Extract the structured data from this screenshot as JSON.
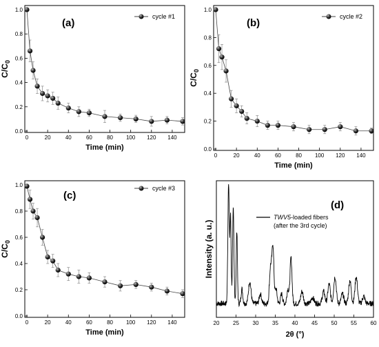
{
  "chart_data": [
    {
      "type": "scatter",
      "panel_label": "(a)",
      "xlabel": "Time (min)",
      "ylabel_main": "C/C",
      "ylabel_sub": "0",
      "xlim": [
        0,
        150
      ],
      "ylim": [
        0,
        1.0
      ],
      "xticks": [
        0,
        20,
        40,
        60,
        80,
        100,
        120,
        140
      ],
      "yticks": [
        0.0,
        0.2,
        0.4,
        0.6,
        0.8,
        1.0
      ],
      "series": [
        {
          "name": "cycle #1",
          "x": [
            0,
            3,
            6,
            10,
            15,
            20,
            25,
            30,
            40,
            50,
            60,
            75,
            90,
            105,
            120,
            135,
            150
          ],
          "y": [
            1.0,
            0.66,
            0.5,
            0.37,
            0.31,
            0.29,
            0.27,
            0.23,
            0.19,
            0.16,
            0.15,
            0.12,
            0.11,
            0.1,
            0.08,
            0.09,
            0.08
          ],
          "err": [
            0,
            0.09,
            0.07,
            0.06,
            0.06,
            0.05,
            0.05,
            0.05,
            0.04,
            0.04,
            0.03,
            0.05,
            0.03,
            0.03,
            0.04,
            0.03,
            0.03
          ]
        }
      ]
    },
    {
      "type": "scatter",
      "panel_label": "(b)",
      "xlabel": "Time (min)",
      "ylabel_main": "C/C",
      "ylabel_sub": "0",
      "xlim": [
        0,
        150
      ],
      "ylim": [
        0,
        1.0
      ],
      "xticks": [
        0,
        20,
        40,
        60,
        80,
        100,
        120,
        140
      ],
      "yticks": [
        0.0,
        0.2,
        0.4,
        0.6,
        0.8,
        1.0
      ],
      "series": [
        {
          "name": "cycle #2",
          "x": [
            0,
            3,
            6,
            10,
            15,
            20,
            25,
            30,
            40,
            50,
            60,
            75,
            90,
            105,
            120,
            135,
            150
          ],
          "y": [
            1.0,
            0.72,
            0.66,
            0.56,
            0.36,
            0.31,
            0.27,
            0.22,
            0.2,
            0.17,
            0.17,
            0.16,
            0.14,
            0.14,
            0.16,
            0.13,
            0.13
          ],
          "err": [
            0,
            0.1,
            0.09,
            0.08,
            0.06,
            0.05,
            0.04,
            0.04,
            0.04,
            0.03,
            0.03,
            0.03,
            0.03,
            0.03,
            0.03,
            0.03,
            0.02
          ]
        }
      ]
    },
    {
      "type": "scatter",
      "panel_label": "(c)",
      "xlabel": "Time (min)",
      "ylabel_main": "C/C",
      "ylabel_sub": "0",
      "xlim": [
        0,
        150
      ],
      "ylim": [
        0,
        1.0
      ],
      "xticks": [
        0,
        20,
        40,
        60,
        80,
        100,
        120,
        140
      ],
      "yticks": [
        0.0,
        0.2,
        0.4,
        0.6,
        0.8,
        1.0
      ],
      "series": [
        {
          "name": "cycle #3",
          "x": [
            0,
            3,
            6,
            10,
            15,
            20,
            25,
            30,
            40,
            50,
            60,
            75,
            90,
            105,
            120,
            135,
            150
          ],
          "y": [
            0.99,
            0.89,
            0.8,
            0.75,
            0.6,
            0.45,
            0.42,
            0.35,
            0.32,
            0.3,
            0.29,
            0.26,
            0.23,
            0.24,
            0.22,
            0.19,
            0.17
          ],
          "err": [
            0,
            0.07,
            0.06,
            0.07,
            0.06,
            0.05,
            0.05,
            0.05,
            0.05,
            0.05,
            0.04,
            0.04,
            0.04,
            0.03,
            0.03,
            0.03,
            0.03
          ]
        }
      ]
    },
    {
      "type": "line",
      "panel_label": "(d)",
      "xlabel": "2θ (°)",
      "ylabel": "Intensity (a. u.)",
      "xlim": [
        20,
        60
      ],
      "xticks": [
        20,
        25,
        30,
        35,
        40,
        45,
        50,
        55,
        60
      ],
      "legend_italic": "TWV5",
      "legend_rest": "-loaded fibers",
      "legend_line2": "(after the 3rd cycle)",
      "peaks": [
        {
          "x": 23.1,
          "h": 1.0,
          "w": 0.25
        },
        {
          "x": 23.6,
          "h": 0.72,
          "w": 0.22
        },
        {
          "x": 24.3,
          "h": 0.78,
          "w": 0.25
        },
        {
          "x": 25.2,
          "h": 0.6,
          "w": 0.22
        },
        {
          "x": 26.5,
          "h": 0.12,
          "w": 0.3
        },
        {
          "x": 28.5,
          "h": 0.18,
          "w": 0.45
        },
        {
          "x": 31.2,
          "h": 0.08,
          "w": 0.4
        },
        {
          "x": 33.8,
          "h": 0.3,
          "w": 0.4
        },
        {
          "x": 34.4,
          "h": 0.46,
          "w": 0.35
        },
        {
          "x": 35.2,
          "h": 0.12,
          "w": 0.35
        },
        {
          "x": 36.6,
          "h": 0.08,
          "w": 0.35
        },
        {
          "x": 38.2,
          "h": 0.12,
          "w": 0.35
        },
        {
          "x": 39.0,
          "h": 0.38,
          "w": 0.35
        },
        {
          "x": 41.8,
          "h": 0.1,
          "w": 0.45
        },
        {
          "x": 44.5,
          "h": 0.05,
          "w": 0.5
        },
        {
          "x": 47.3,
          "h": 0.1,
          "w": 0.45
        },
        {
          "x": 48.7,
          "h": 0.16,
          "w": 0.45
        },
        {
          "x": 50.2,
          "h": 0.22,
          "w": 0.45
        },
        {
          "x": 52.1,
          "h": 0.08,
          "w": 0.45
        },
        {
          "x": 54.0,
          "h": 0.19,
          "w": 0.45
        },
        {
          "x": 55.6,
          "h": 0.22,
          "w": 0.45
        },
        {
          "x": 57.5,
          "h": 0.06,
          "w": 0.45
        }
      ]
    }
  ]
}
